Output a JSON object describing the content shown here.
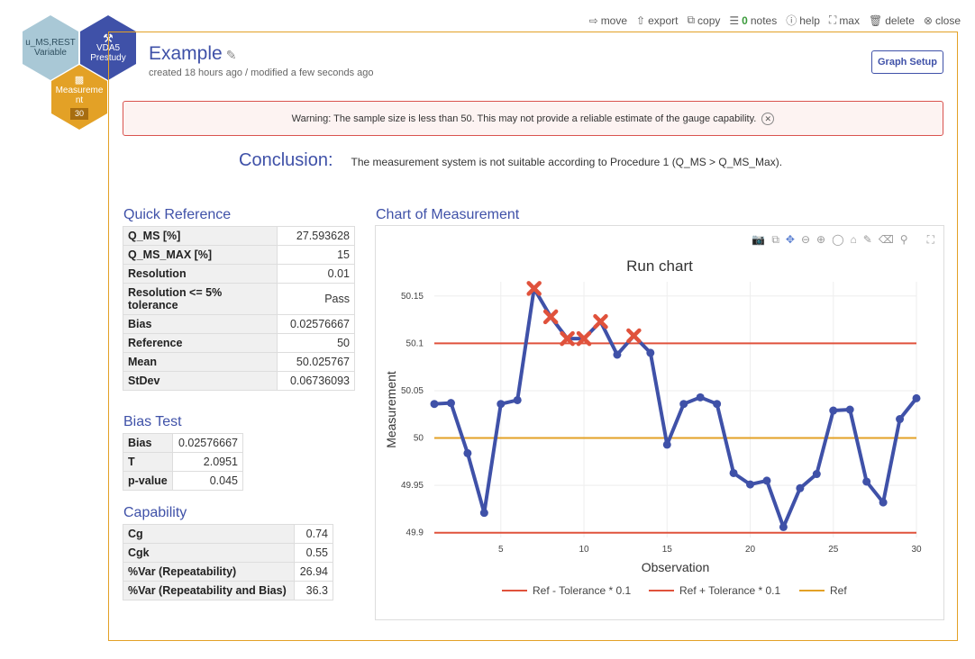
{
  "hexes": [
    {
      "line1": "u_MS,REST",
      "line2": "Variable"
    },
    {
      "icon": "wrench-icon",
      "line1": "VDA5",
      "line2": "Prestudy"
    },
    {
      "icon": "chart-icon",
      "line1": "Measureme",
      "line2": "nt",
      "badge": "30"
    }
  ],
  "toolbar": {
    "move": "move",
    "export": "export",
    "copy": "copy",
    "notes_count": "0",
    "notes": "notes",
    "help": "help",
    "max": "max",
    "delete": "delete",
    "close": "close"
  },
  "header": {
    "title": "Example",
    "meta": "created 18 hours ago / modified a few seconds ago",
    "graph_setup": "Graph Setup"
  },
  "warning": "Warning: The sample size is less than 50. This may not provide a reliable estimate of the gauge capability.",
  "conclusion": {
    "label": "Conclusion:",
    "text": "The measurement system is not suitable according to Procedure 1 (Q_MS > Q_MS_Max)."
  },
  "quick_reference": {
    "title": "Quick Reference",
    "rows": [
      {
        "k": "Q_MS [%]",
        "v": "27.593628"
      },
      {
        "k": "Q_MS_MAX [%]",
        "v": "15"
      },
      {
        "k": "Resolution",
        "v": "0.01"
      },
      {
        "k": "Resolution <= 5% tolerance",
        "v": "Pass"
      },
      {
        "k": "Bias",
        "v": "0.02576667"
      },
      {
        "k": "Reference",
        "v": "50"
      },
      {
        "k": "Mean",
        "v": "50.025767"
      },
      {
        "k": "StDev",
        "v": "0.06736093"
      }
    ]
  },
  "bias_test": {
    "title": "Bias Test",
    "rows": [
      {
        "k": "Bias",
        "v": "0.02576667"
      },
      {
        "k": "T",
        "v": "2.0951"
      },
      {
        "k": "p-value",
        "v": "0.045"
      }
    ]
  },
  "capability": {
    "title": "Capability",
    "rows": [
      {
        "k": "Cg",
        "v": "0.74"
      },
      {
        "k": "Cgk",
        "v": "0.55"
      },
      {
        "k": "%Var (Repeatability)",
        "v": "26.94"
      },
      {
        "k": "%Var (Repeatability and Bias)",
        "v": "36.3"
      }
    ]
  },
  "chart_section_title": "Chart of Measurement",
  "colors": {
    "accent": "#3f51a8",
    "series": "#3f51a8",
    "limit": "#e0523c",
    "ref": "#e3a126",
    "flag": "#e0523c"
  },
  "chart_data": {
    "type": "line",
    "title": "Run chart",
    "xlabel": "Observation",
    "ylabel": "Measurement",
    "xlim": [
      1,
      30
    ],
    "ylim": [
      49.895,
      50.165
    ],
    "xticks": [
      5,
      10,
      15,
      20,
      25,
      30
    ],
    "yticks": [
      49.9,
      49.95,
      50,
      50.05,
      50.1,
      50.15
    ],
    "ytick_labels": [
      "49.9",
      "49.95",
      "50",
      "50.05",
      "50.1",
      "50.15"
    ],
    "x": [
      1,
      2,
      3,
      4,
      5,
      6,
      7,
      8,
      9,
      10,
      11,
      12,
      13,
      14,
      15,
      16,
      17,
      18,
      19,
      20,
      21,
      22,
      23,
      24,
      25,
      26,
      27,
      28,
      29,
      30
    ],
    "values": [
      50.036,
      50.037,
      49.984,
      49.921,
      50.036,
      50.04,
      50.158,
      50.128,
      50.105,
      50.105,
      50.123,
      50.088,
      50.108,
      50.09,
      49.993,
      50.036,
      50.043,
      50.036,
      49.963,
      49.951,
      49.955,
      49.906,
      49.947,
      49.962,
      50.029,
      50.03,
      49.954,
      49.932,
      50.02,
      50.042
    ],
    "flagged": [
      7,
      8,
      9,
      10,
      11,
      13
    ],
    "series": [
      {
        "name": "Ref - Tolerance * 0.1",
        "y": 49.9
      },
      {
        "name": "Ref + Tolerance * 0.1",
        "y": 50.1
      },
      {
        "name": "Ref",
        "y": 50
      }
    ]
  }
}
